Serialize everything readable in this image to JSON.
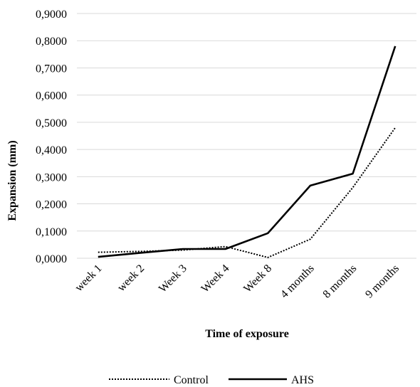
{
  "chart_data": {
    "type": "line",
    "title": "",
    "xlabel": "Time of exposure",
    "ylabel": "Expansion (mm)",
    "categories": [
      "week 1",
      "week 2",
      "Week 3",
      "Week 4",
      "Week 8",
      "4 months",
      "8 months",
      "9 months"
    ],
    "ylim": [
      0,
      0.9
    ],
    "yticks": [
      "0,0000",
      "0,1000",
      "0,2000",
      "0,3000",
      "0,4000",
      "0,5000",
      "0,6000",
      "0,7000",
      "0,8000",
      "0,9000"
    ],
    "grid": true,
    "legend_position": "bottom",
    "series": [
      {
        "name": "Control",
        "style": "dotted",
        "color": "#000000",
        "values": [
          0.022,
          0.025,
          0.03,
          0.043,
          0.003,
          0.07,
          0.26,
          0.48
        ]
      },
      {
        "name": "AHS",
        "style": "solid",
        "color": "#000000",
        "values": [
          0.005,
          0.02,
          0.034,
          0.034,
          0.092,
          0.267,
          0.311,
          0.78
        ]
      }
    ]
  }
}
